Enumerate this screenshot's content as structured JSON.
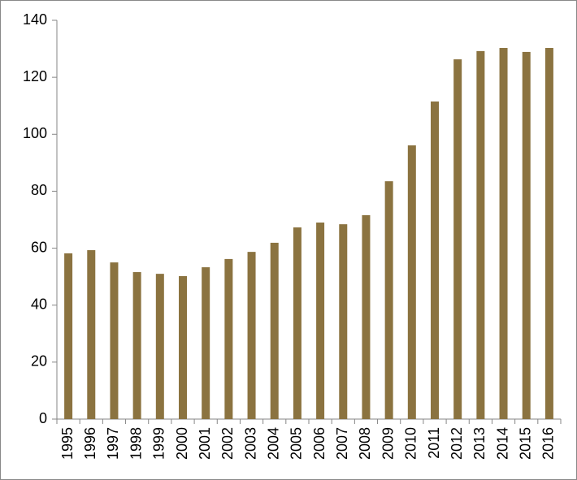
{
  "chart_data": {
    "type": "bar",
    "categories": [
      "1995",
      "1996",
      "1997",
      "1998",
      "1999",
      "2000",
      "2001",
      "2002",
      "2003",
      "2004",
      "2005",
      "2006",
      "2007",
      "2008",
      "2009",
      "2010",
      "2011",
      "2012",
      "2013",
      "2014",
      "2015",
      "2016"
    ],
    "values": [
      58.2,
      59.3,
      55.0,
      51.6,
      51.0,
      50.2,
      53.3,
      56.2,
      58.7,
      61.9,
      67.3,
      69.0,
      68.4,
      71.6,
      83.5,
      96.1,
      111.5,
      126.3,
      129.2,
      130.3,
      128.9,
      130.3
    ],
    "color": "#8b7340",
    "ylim": [
      0,
      140
    ],
    "yticks": [
      0,
      20,
      40,
      60,
      80,
      100,
      120,
      140
    ],
    "grid": false
  }
}
